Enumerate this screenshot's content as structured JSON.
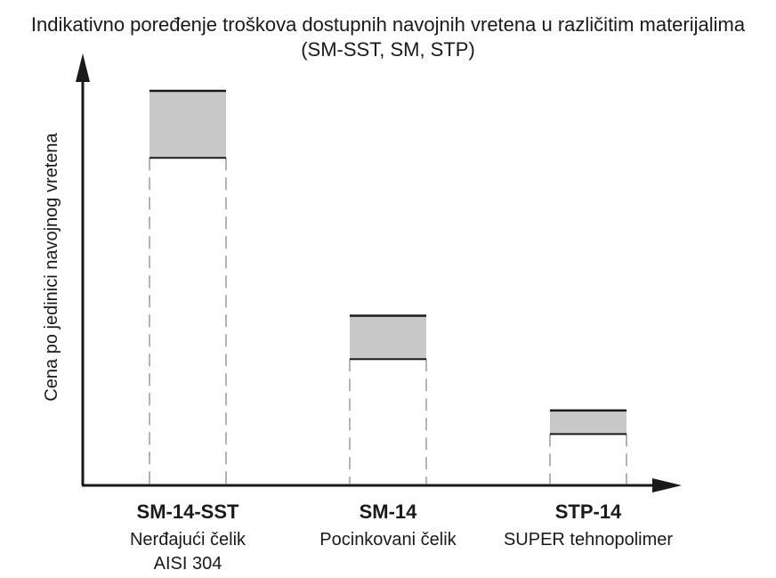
{
  "chart_data": {
    "type": "bar",
    "title": "Indikativno poređenje troškova dostupnih navojnih vretena u različitim materijalima",
    "subtitle": "(SM-SST, SM, STP)",
    "xlabel": "",
    "ylabel": "Cena po jedinici navojnog vretena",
    "grid": false,
    "ylim": [
      0,
      100
    ],
    "categories": [
      {
        "code": "SM-14-SST",
        "desc": [
          "Nerđajući čelik",
          "AISI 304"
        ]
      },
      {
        "code": "SM-14",
        "desc": [
          "Pocinkovani čelik"
        ]
      },
      {
        "code": "STP-14",
        "desc": [
          "SUPER tehnopolimer"
        ]
      }
    ],
    "series": [
      {
        "values_low": [
          83,
          32,
          13
        ],
        "values_high": [
          100,
          43,
          19
        ]
      }
    ],
    "colors": {
      "range_fill": "#c8c8c8",
      "stroke": "#1a1a1a",
      "dashed": "#9a9a9a"
    }
  }
}
